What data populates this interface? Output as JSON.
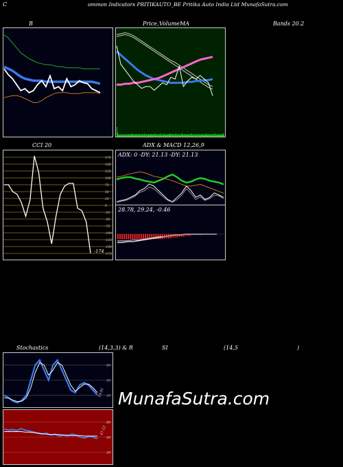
{
  "header": {
    "c": "C",
    "title": "ommon  Indicators PRITIKAUTO_BE Pritika  Auto   India Ltd MunafaSutra.com"
  },
  "labels": {
    "b": "B",
    "price": "Price,",
    "volume": "Volume",
    "ma": "MA",
    "bands": "Bands 20.2",
    "cci": "CCI 20",
    "adx": "ADX   &  MACD 12,26,9",
    "adx_values": "ADX: 0   -DY: 21.13 -DY: 21.13",
    "macd_values": "28.78,  29.24,  -0.46",
    "stoch": "Stochastics",
    "stoch_params": "(14,3,3) & R",
    "si": "SI",
    "rsi_params": "(14,5",
    "close_paren": ")",
    "watermark": "MunafaSutra.com"
  },
  "colors": {
    "bands_bg": "#020215",
    "price_bg": "#002200",
    "cci_bg": "#000000",
    "cci_grid": "#8a7a1a",
    "adx_bg": "#020215",
    "stoch_bg": "#020215",
    "rsi_bg": "#8b0000",
    "blue": "#3a7ae8",
    "green": "#22cc22",
    "orange": "#cc7a1a",
    "pink": "#ff66cc",
    "red": "#ff2222"
  },
  "chart_data": [
    {
      "type": "line",
      "name": "bollinger-bands",
      "ylim": [
        0,
        100
      ],
      "series": [
        {
          "name": "upper",
          "color": "#22aa22",
          "values": [
            96,
            93,
            88,
            83,
            78,
            75,
            72,
            70,
            68,
            67,
            66,
            66,
            65,
            64,
            64,
            63,
            63,
            63,
            63,
            62,
            62,
            62,
            62,
            62
          ]
        },
        {
          "name": "middle",
          "color": "#3a7ae8",
          "values": [
            64,
            62,
            60,
            57,
            54,
            52,
            51,
            50,
            50,
            50,
            49,
            49,
            49,
            49,
            49,
            49,
            49,
            49,
            49,
            49,
            49,
            49,
            48,
            47
          ]
        },
        {
          "name": "lower",
          "color": "#cc7a1a",
          "values": [
            33,
            34,
            35,
            35,
            34,
            32,
            30,
            28,
            28,
            30,
            33,
            35,
            37,
            38,
            38,
            38,
            37,
            37,
            37,
            38,
            38,
            38,
            38,
            37
          ]
        },
        {
          "name": "close",
          "color": "#ffffff",
          "values": [
            62,
            56,
            52,
            46,
            40,
            42,
            38,
            40,
            46,
            50,
            44,
            55,
            42,
            44,
            40,
            52,
            44,
            46,
            50,
            48,
            47,
            42,
            40,
            38
          ]
        }
      ]
    },
    {
      "type": "line",
      "name": "price-volume-ma",
      "ylim": [
        0,
        100
      ],
      "series": [
        {
          "name": "ma-a",
          "color": "#cccccc",
          "values": [
            96,
            97,
            98,
            97,
            95,
            92,
            89,
            86,
            83,
            80,
            77,
            74,
            71,
            68,
            66,
            63,
            60,
            57,
            54,
            51,
            48,
            45,
            42,
            40
          ]
        },
        {
          "name": "ma-b",
          "color": "#cccccc",
          "values": [
            94,
            95,
            96,
            95,
            93,
            90,
            87,
            84,
            81,
            78,
            75,
            72,
            69,
            66,
            63,
            60,
            57,
            54,
            51,
            48,
            45,
            42,
            39,
            37
          ]
        },
        {
          "name": "blue-ma",
          "color": "#3a7ae8",
          "values": [
            78,
            74,
            70,
            66,
            62,
            58,
            55,
            52,
            50,
            48,
            47,
            46,
            45,
            44,
            44,
            44,
            44,
            45,
            45,
            46,
            46,
            47,
            47,
            48
          ]
        },
        {
          "name": "pink-ma",
          "color": "#ff66cc",
          "values": [
            42,
            42,
            43,
            43,
            44,
            44,
            45,
            46,
            47,
            48,
            49,
            51,
            53,
            55,
            57,
            59,
            61,
            63,
            65,
            67,
            69,
            70,
            71,
            72
          ]
        },
        {
          "name": "close",
          "color": "#ffffff",
          "values": [
            84,
            64,
            58,
            52,
            46,
            42,
            38,
            40,
            40,
            36,
            40,
            44,
            42,
            50,
            48,
            62,
            40,
            46,
            50,
            48,
            52,
            48,
            44,
            30
          ]
        }
      ],
      "volume": [
        14,
        6,
        4,
        3,
        3,
        3,
        4,
        3,
        3,
        3,
        4,
        3,
        3,
        3,
        4,
        3,
        3,
        4,
        3,
        3,
        3,
        4,
        5,
        3,
        3,
        4,
        3,
        3,
        4,
        4,
        3,
        3,
        4,
        3,
        4,
        3,
        3,
        4,
        4,
        3,
        3,
        5,
        3,
        3,
        4,
        3,
        3,
        4,
        3,
        3,
        4,
        3,
        4,
        3,
        3,
        4,
        3,
        5,
        3,
        3,
        4,
        3,
        3,
        4,
        3,
        5,
        3,
        3,
        4,
        3,
        5,
        3,
        3,
        4,
        3,
        3,
        4,
        3,
        4,
        5,
        3,
        3,
        4,
        4,
        3,
        3,
        4,
        3,
        5,
        3,
        3,
        4,
        3,
        4,
        3,
        3,
        4,
        5,
        3,
        3,
        4,
        3,
        3,
        4,
        3,
        3,
        4,
        3,
        3,
        4,
        3,
        5,
        3,
        3,
        4,
        3,
        3,
        4,
        3,
        3,
        4,
        3,
        4,
        3,
        3,
        4,
        3,
        3,
        4,
        3,
        3,
        4,
        3,
        5,
        3,
        3,
        4,
        3,
        3,
        4,
        3,
        4,
        3,
        3,
        4,
        3,
        5,
        3,
        3,
        4,
        3,
        3,
        4,
        3,
        3,
        4,
        3,
        3,
        5,
        3
      ]
    },
    {
      "type": "line",
      "name": "cci",
      "ylim": [
        -175,
        175
      ],
      "yticks": [
        "175",
        "150",
        "125",
        "100",
        "75",
        "50",
        "25",
        "0",
        "-25",
        "-50",
        "-75",
        "-100",
        "-125",
        "-150",
        "-175"
      ],
      "last_label": "-174",
      "series": [
        {
          "name": "cci",
          "color": "#ffffff",
          "values": [
            75,
            75,
            50,
            40,
            10,
            -40,
            20,
            180,
            120,
            -10,
            -60,
            -140,
            -40,
            40,
            70,
            80,
            80,
            -10,
            -20,
            -60,
            -174
          ]
        }
      ]
    },
    {
      "type": "line",
      "name": "adx",
      "ylim": [
        0,
        100
      ],
      "series": [
        {
          "name": "green",
          "color": "#22cc22",
          "values": [
            55,
            58,
            60,
            60,
            57,
            55,
            52,
            50,
            48,
            52,
            56,
            62,
            66,
            60,
            52,
            48,
            50,
            55,
            58,
            56,
            52,
            50,
            48,
            44
          ]
        },
        {
          "name": "orange",
          "color": "#cc7a1a",
          "values": [
            60,
            62,
            65,
            68,
            70,
            72,
            70,
            66,
            62,
            60,
            58,
            55,
            52,
            48,
            44,
            40,
            40,
            42,
            44,
            40,
            36,
            32,
            28,
            24
          ]
        },
        {
          "name": "white",
          "color": "#ffffff",
          "values": [
            5,
            8,
            10,
            15,
            20,
            30,
            35,
            45,
            40,
            30,
            20,
            10,
            5,
            15,
            25,
            40,
            30,
            15,
            20,
            10,
            15,
            25,
            20,
            15
          ]
        },
        {
          "name": "grey",
          "color": "#999999",
          "values": [
            4,
            6,
            8,
            12,
            18,
            26,
            30,
            38,
            34,
            25,
            16,
            8,
            4,
            10,
            20,
            34,
            24,
            10,
            16,
            8,
            12,
            20,
            18,
            12
          ]
        }
      ]
    },
    {
      "type": "bar",
      "name": "macd",
      "ylim": [
        -10,
        10
      ],
      "values": [
        -6,
        -6,
        -6,
        -6,
        -6,
        -6,
        -6,
        -6,
        -6,
        -6,
        -6,
        -6,
        -6,
        -6,
        -6,
        -6,
        -6,
        -6,
        -6,
        -6,
        -6,
        -6,
        -5,
        -5,
        -5,
        -5,
        -4,
        -4,
        -4,
        -3,
        -3,
        -3,
        -2,
        -2,
        -2,
        -1,
        -1,
        -1,
        -1,
        -1,
        0,
        0,
        0,
        0,
        0,
        0,
        0
      ],
      "series": [
        {
          "name": "macd",
          "color": "#ffffff",
          "values": [
            -10,
            -10,
            -9,
            -9,
            -8,
            -7,
            -6,
            -5,
            -4,
            -3,
            -2,
            -1,
            -1,
            0,
            0,
            0,
            0,
            0,
            0,
            0
          ]
        },
        {
          "name": "signal",
          "color": "#aaaaaa",
          "values": [
            -8,
            -8,
            -8,
            -7,
            -7,
            -6,
            -5,
            -4,
            -3,
            -3,
            -2,
            -1,
            -1,
            0,
            0,
            0,
            0,
            0,
            0,
            0
          ]
        }
      ]
    },
    {
      "type": "line",
      "name": "stochastics",
      "ylim": [
        0,
        100
      ],
      "yticks": [
        "80",
        "50",
        "20"
      ],
      "last_label": "19.91",
      "series": [
        {
          "name": "k",
          "color": "#3a7ae8",
          "values": [
            20,
            15,
            8,
            5,
            10,
            20,
            50,
            80,
            90,
            70,
            50,
            80,
            90,
            70,
            50,
            30,
            25,
            40,
            45,
            40,
            30,
            20
          ]
        },
        {
          "name": "d",
          "color": "#ffffff",
          "values": [
            15,
            14,
            10,
            7,
            8,
            15,
            35,
            65,
            85,
            80,
            60,
            70,
            85,
            80,
            60,
            40,
            28,
            35,
            42,
            42,
            35,
            25
          ]
        }
      ]
    },
    {
      "type": "line",
      "name": "rsi",
      "ylim": [
        0,
        100
      ],
      "yticks": [
        "80",
        "50",
        "20"
      ],
      "last_label": "47.22",
      "series": [
        {
          "name": "rsi",
          "color": "#3a7ae8",
          "values": [
            66,
            64,
            65,
            63,
            67,
            64,
            62,
            60,
            58,
            56,
            58,
            54,
            56,
            52,
            54,
            52,
            56,
            54,
            50,
            48,
            52,
            50,
            47
          ]
        },
        {
          "name": "ref",
          "color": "#ffffff",
          "values": [
            61,
            61,
            61,
            61,
            61,
            60,
            60,
            59,
            58,
            57,
            56,
            55,
            55,
            55,
            54,
            54,
            53,
            53,
            53,
            52,
            52,
            52,
            52
          ]
        }
      ]
    }
  ]
}
